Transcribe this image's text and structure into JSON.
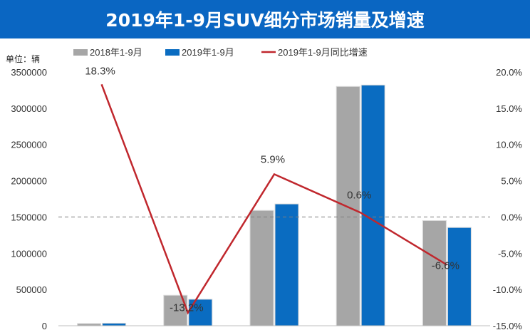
{
  "chart_data": {
    "type": "bar",
    "title": "2019年1-9月SUV细分市场销量及增速",
    "unit_label": "单位：辆",
    "categories": [
      "",
      "",
      "",
      "",
      ""
    ],
    "series": [
      {
        "name": "2018年1-9月",
        "type": "bar",
        "axis": "left",
        "color": "#a6a6a6",
        "values": [
          30000,
          420000,
          1590000,
          3300000,
          1450000
        ]
      },
      {
        "name": "2019年1-9月",
        "type": "bar",
        "axis": "left",
        "color": "#0a6cc1",
        "values": [
          35000,
          365000,
          1680000,
          3320000,
          1355000
        ]
      },
      {
        "name": "2019年1-9月同比增速",
        "type": "line",
        "axis": "right",
        "color": "#c0272d",
        "values": [
          18.3,
          -13.2,
          5.9,
          0.6,
          -6.6
        ],
        "labels": [
          "18.3%",
          "-13.2%",
          "5.9%",
          "0.6%",
          "-6.6%"
        ]
      }
    ],
    "y_left": {
      "min": 0,
      "max": 3500000,
      "ticks": [
        "0",
        "500000",
        "1000000",
        "1500000",
        "2000000",
        "2500000",
        "3000000",
        "3500000"
      ]
    },
    "y_right": {
      "min": -15,
      "max": 20,
      "ticks": [
        "-15.0%",
        "-10.0%",
        "-5.0%",
        "0.0%",
        "5.0%",
        "10.0%",
        "15.0%",
        "20.0%"
      ]
    },
    "reference_line": {
      "axis": "right",
      "value": 0,
      "style": "dashed"
    },
    "legend_position": "top",
    "grid": false
  }
}
